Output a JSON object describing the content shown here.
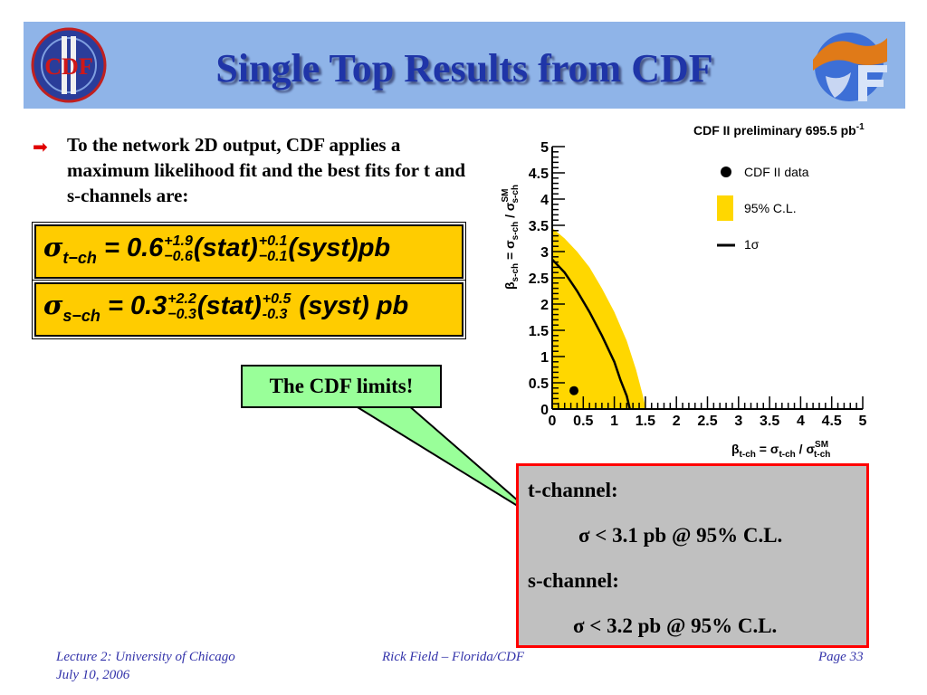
{
  "slide": {
    "title": "Single Top Results from CDF",
    "logo_left_text": "CDF",
    "bullet": "To the network 2D output, CDF applies a maximum likelihood fit and the best fits for t and s-channels are:",
    "formula_t": {
      "sigma": "σ",
      "sub": "t−ch",
      "eq": " = 0.6",
      "stat_up": "+1.9",
      "stat_dn": "−0.6",
      "stat": "(stat)",
      "syst_up": "+0.1",
      "syst_dn": "−0.1",
      "syst": "(syst)pb"
    },
    "formula_s": {
      "sigma": "σ",
      "sub": "s−ch",
      "eq": " = 0.3",
      "stat_up": "+2.2",
      "stat_dn": "−0.3",
      "stat": "(stat)",
      "syst_up": "+0.5",
      "syst_dn": "-0.3",
      "syst": " (syst) pb"
    },
    "callout": "The CDF limits!",
    "results": {
      "t_label": "t-channel:",
      "t_limit": "σ < 3.1 pb @ 95% C.L.",
      "s_label": "s-channel:",
      "s_limit": "σ < 3.2 pb  @ 95% C.L."
    },
    "footer": {
      "lecture": "Lecture 2: University of Chicago",
      "date": "July 10, 2006",
      "author": "Rick Field – Florida/CDF",
      "page": "Page 33"
    },
    "colors": {
      "title": "#1f35a8",
      "title_bar": "#8fb4e8",
      "formula_bg": "#ffcc00",
      "callout_bg": "#99ff99",
      "result_border": "#ff0000",
      "band": "#ffd700"
    }
  },
  "chart_data": {
    "type": "scatter",
    "title": "CDF II preliminary 695.5 pb",
    "title_sup": "-1",
    "xlabel_main": "β",
    "xlabel_sub": "t-ch",
    "xlabel_rest": " = σ",
    "xlabel_rest_sub": "t-ch",
    "xlabel_tail": " / σ",
    "xlabel_tail_sup": "SM",
    "xlabel_tail_sub": "t-ch",
    "ylabel_main": "β",
    "ylabel_sub": "s-ch",
    "ylabel_rest": " = σ",
    "ylabel_rest_sub": "s-ch",
    "ylabel_tail": " / σ",
    "ylabel_tail_sup": "SM",
    "ylabel_tail_sub": "s-ch",
    "xlim": [
      0,
      5
    ],
    "ylim": [
      0,
      5
    ],
    "ticks": [
      "0",
      "0.5",
      "1",
      "1.5",
      "2",
      "2.5",
      "3",
      "3.5",
      "4",
      "4.5",
      "5"
    ],
    "tick_values": [
      0,
      0.5,
      1,
      1.5,
      2,
      2.5,
      3,
      3.5,
      4,
      4.5,
      5
    ],
    "legend": [
      "CDF II data",
      "95% C.L.",
      "1σ"
    ],
    "data_point": {
      "x": 0.35,
      "y": 0.35
    },
    "band_95": [
      [
        0,
        3.45
      ],
      [
        0.2,
        3.25
      ],
      [
        0.4,
        3.0
      ],
      [
        0.6,
        2.7
      ],
      [
        0.8,
        2.3
      ],
      [
        1.0,
        1.85
      ],
      [
        1.2,
        1.3
      ],
      [
        1.35,
        0.75
      ],
      [
        1.45,
        0.3
      ],
      [
        1.5,
        0.05
      ]
    ],
    "curve_1sigma": [
      [
        0,
        2.85
      ],
      [
        0.2,
        2.6
      ],
      [
        0.4,
        2.25
      ],
      [
        0.6,
        1.85
      ],
      [
        0.8,
        1.4
      ],
      [
        1.0,
        0.9
      ],
      [
        1.1,
        0.55
      ],
      [
        1.2,
        0.25
      ],
      [
        1.25,
        0.0
      ]
    ]
  }
}
